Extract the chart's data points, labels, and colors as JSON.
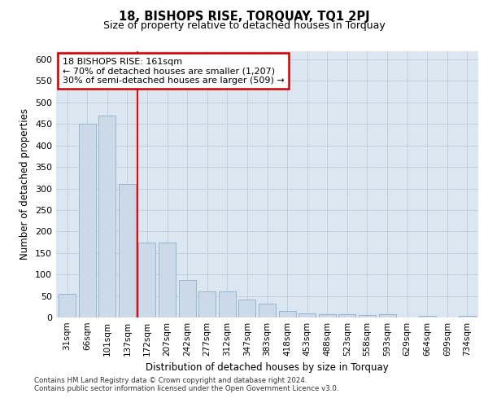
{
  "title": "18, BISHOPS RISE, TORQUAY, TQ1 2PJ",
  "subtitle": "Size of property relative to detached houses in Torquay",
  "xlabel": "Distribution of detached houses by size in Torquay",
  "ylabel": "Number of detached properties",
  "categories": [
    "31sqm",
    "66sqm",
    "101sqm",
    "137sqm",
    "172sqm",
    "207sqm",
    "242sqm",
    "277sqm",
    "312sqm",
    "347sqm",
    "383sqm",
    "418sqm",
    "453sqm",
    "488sqm",
    "523sqm",
    "558sqm",
    "593sqm",
    "629sqm",
    "664sqm",
    "699sqm",
    "734sqm"
  ],
  "values": [
    55,
    450,
    470,
    310,
    175,
    175,
    88,
    60,
    60,
    42,
    32,
    15,
    9,
    8,
    7,
    6,
    8,
    0,
    3,
    0,
    3
  ],
  "bar_color": "#ccd9e8",
  "bar_edge_color": "#8ab0cc",
  "red_line_x": 3.5,
  "annotation_title": "18 BISHOPS RISE: 161sqm",
  "annotation_line1": "← 70% of detached houses are smaller (1,207)",
  "annotation_line2": "30% of semi-detached houses are larger (509) →",
  "annotation_box_color": "#ffffff",
  "annotation_box_edge": "#cc0000",
  "grid_color": "#bfcfdf",
  "background_color": "#dce6f0",
  "ylim": [
    0,
    620
  ],
  "yticks": [
    0,
    50,
    100,
    150,
    200,
    250,
    300,
    350,
    400,
    450,
    500,
    550,
    600
  ],
  "footer1": "Contains HM Land Registry data © Crown copyright and database right 2024.",
  "footer2": "Contains public sector information licensed under the Open Government Licence v3.0."
}
